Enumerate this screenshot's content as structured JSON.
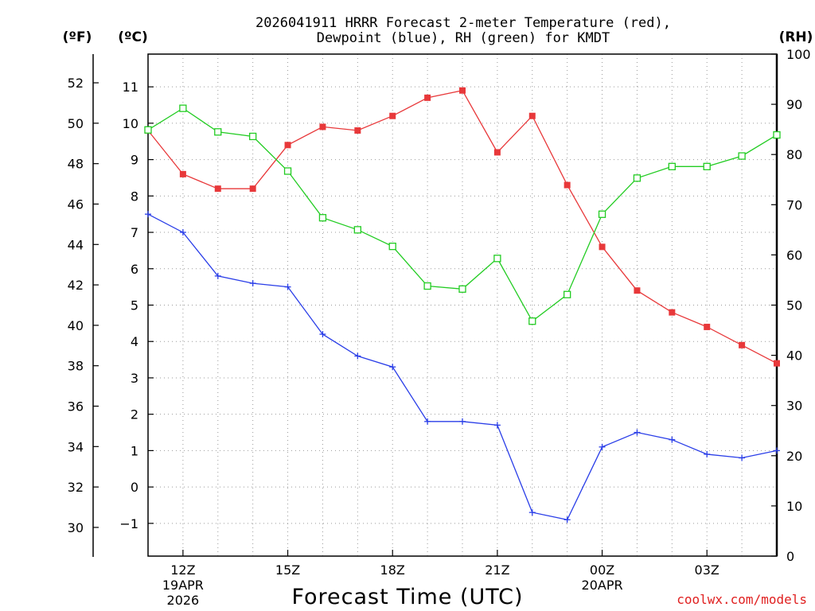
{
  "chart_data": {
    "type": "line",
    "title_line1": "2026041911 HRRR Forecast 2-meter Temperature (red),",
    "title_line2": "Dewpoint (blue), RH (green) for KMDT",
    "xlabel": "Forecast Time (UTC)",
    "credit": "coolwx.com/models",
    "unit_f": "(ºF)",
    "unit_c": "(ºC)",
    "unit_rh": "(RH)",
    "hours": [
      11,
      12,
      13,
      14,
      15,
      16,
      17,
      18,
      19,
      20,
      21,
      22,
      23,
      24,
      25,
      26,
      27,
      28,
      29
    ],
    "x_ticks": [
      {
        "hour": 12,
        "label": "12Z",
        "sub1": "19APR",
        "sub2": "2026"
      },
      {
        "hour": 15,
        "label": "15Z",
        "sub1": "",
        "sub2": ""
      },
      {
        "hour": 18,
        "label": "18Z",
        "sub1": "",
        "sub2": ""
      },
      {
        "hour": 21,
        "label": "21Z",
        "sub1": "",
        "sub2": ""
      },
      {
        "hour": 24,
        "label": "00Z",
        "sub1": "20APR",
        "sub2": ""
      },
      {
        "hour": 27,
        "label": "03Z",
        "sub1": "",
        "sub2": ""
      }
    ],
    "ylim_c": [
      -1.9,
      11.9
    ],
    "ylim_rh": [
      0,
      100
    ],
    "yticks_c": [
      "−1",
      "0",
      "1",
      "2",
      "3",
      "4",
      "5",
      "6",
      "7",
      "8",
      "9",
      "10",
      "11"
    ],
    "yticks_f": [
      "30",
      "32",
      "34",
      "36",
      "38",
      "40",
      "42",
      "44",
      "46",
      "48",
      "50",
      "52"
    ],
    "yticks_rh": [
      "0",
      "10",
      "20",
      "30",
      "40",
      "50",
      "60",
      "70",
      "80",
      "90",
      "100"
    ],
    "series": [
      {
        "name": "Temperature",
        "color": "#e8383a",
        "values": [
          9.8,
          8.6,
          8.2,
          8.2,
          9.4,
          9.9,
          9.8,
          10.2,
          10.7,
          10.9,
          9.2,
          10.2,
          8.3,
          6.6,
          5.4,
          4.8,
          4.4,
          3.9,
          3.4
        ]
      },
      {
        "name": "Dewpoint",
        "color": "#2a3ee8",
        "values": [
          7.5,
          7.0,
          5.8,
          5.6,
          5.5,
          4.2,
          3.6,
          3.3,
          1.8,
          1.8,
          1.7,
          -0.7,
          -0.9,
          1.1,
          1.5,
          1.3,
          0.9,
          0.8,
          1.0
        ]
      },
      {
        "name": "RH",
        "color": "#22cc22",
        "values": [
          84.9,
          89.2,
          84.5,
          83.6,
          76.7,
          67.4,
          65.0,
          61.7,
          53.8,
          53.2,
          59.3,
          46.8,
          52.1,
          68.1,
          75.3,
          77.6,
          77.6,
          79.7,
          83.9
        ]
      }
    ]
  }
}
